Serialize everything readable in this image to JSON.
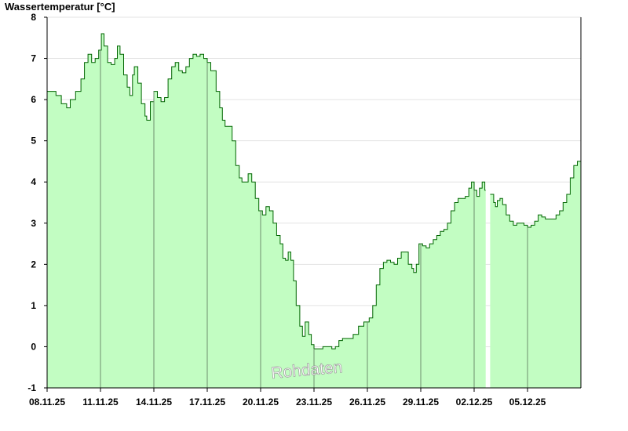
{
  "chart_data": {
    "type": "area",
    "ylabel": "Wassertemperatur [°C]",
    "watermark": "Rohdaten",
    "ylim": [
      -1,
      8
    ],
    "y_ticks": [
      "-1",
      "0",
      "1",
      "2",
      "3",
      "4",
      "5",
      "6",
      "7",
      "8"
    ],
    "x_start": "08.11.25",
    "x_end_day": 30.0,
    "x_ticks": [
      {
        "day": 0,
        "label": "08.11.25"
      },
      {
        "day": 3,
        "label": "11.11.25"
      },
      {
        "day": 6,
        "label": "14.11.25"
      },
      {
        "day": 9,
        "label": "17.11.25"
      },
      {
        "day": 12,
        "label": "20.11.25"
      },
      {
        "day": 15,
        "label": "23.11.25"
      },
      {
        "day": 18,
        "label": "26.11.25"
      },
      {
        "day": 21,
        "label": "29.11.25"
      },
      {
        "day": 24,
        "label": "02.12.25"
      },
      {
        "day": 27,
        "label": "05.12.25"
      }
    ],
    "grid": true,
    "data_gap": [
      24.65,
      24.85
    ],
    "colors": {
      "fill": "#c2fdc2",
      "line": "#006400",
      "grid": "#e3e3e3",
      "vgrid": "#6f8f6f"
    },
    "series": [
      {
        "points": [
          [
            0.0,
            6.2
          ],
          [
            0.3,
            6.2
          ],
          [
            0.5,
            6.1
          ],
          [
            0.8,
            5.9
          ],
          [
            1.1,
            5.8
          ],
          [
            1.3,
            6.0
          ],
          [
            1.6,
            6.2
          ],
          [
            1.9,
            6.5
          ],
          [
            2.1,
            6.9
          ],
          [
            2.3,
            7.1
          ],
          [
            2.5,
            6.9
          ],
          [
            2.7,
            7.0
          ],
          [
            2.9,
            7.2
          ],
          [
            3.05,
            7.6
          ],
          [
            3.2,
            7.3
          ],
          [
            3.4,
            6.9
          ],
          [
            3.6,
            6.85
          ],
          [
            3.8,
            7.0
          ],
          [
            3.95,
            7.3
          ],
          [
            4.1,
            7.1
          ],
          [
            4.3,
            6.6
          ],
          [
            4.5,
            6.3
          ],
          [
            4.65,
            6.1
          ],
          [
            4.8,
            6.6
          ],
          [
            4.9,
            6.8
          ],
          [
            5.1,
            6.4
          ],
          [
            5.3,
            5.9
          ],
          [
            5.5,
            5.6
          ],
          [
            5.6,
            5.5
          ],
          [
            5.8,
            5.95
          ],
          [
            6.0,
            6.2
          ],
          [
            6.2,
            6.05
          ],
          [
            6.4,
            5.95
          ],
          [
            6.6,
            6.05
          ],
          [
            6.8,
            6.5
          ],
          [
            7.0,
            6.8
          ],
          [
            7.2,
            6.9
          ],
          [
            7.4,
            6.7
          ],
          [
            7.6,
            6.65
          ],
          [
            7.8,
            6.8
          ],
          [
            8.0,
            7.0
          ],
          [
            8.2,
            7.1
          ],
          [
            8.4,
            7.05
          ],
          [
            8.6,
            7.1
          ],
          [
            8.8,
            7.0
          ],
          [
            9.0,
            6.9
          ],
          [
            9.2,
            6.7
          ],
          [
            9.5,
            6.2
          ],
          [
            9.7,
            5.8
          ],
          [
            9.85,
            5.5
          ],
          [
            10.0,
            5.35
          ],
          [
            10.2,
            5.35
          ],
          [
            10.4,
            5.0
          ],
          [
            10.6,
            4.4
          ],
          [
            10.8,
            4.1
          ],
          [
            10.95,
            4.0
          ],
          [
            11.1,
            4.0
          ],
          [
            11.3,
            4.2
          ],
          [
            11.5,
            4.0
          ],
          [
            11.7,
            3.6
          ],
          [
            11.9,
            3.3
          ],
          [
            12.1,
            3.2
          ],
          [
            12.3,
            3.4
          ],
          [
            12.5,
            3.3
          ],
          [
            12.7,
            3.0
          ],
          [
            12.9,
            2.7
          ],
          [
            13.1,
            2.5
          ],
          [
            13.25,
            2.15
          ],
          [
            13.4,
            2.1
          ],
          [
            13.55,
            2.3
          ],
          [
            13.7,
            2.1
          ],
          [
            13.85,
            1.6
          ],
          [
            14.0,
            1.0
          ],
          [
            14.2,
            0.5
          ],
          [
            14.35,
            0.25
          ],
          [
            14.5,
            0.6
          ],
          [
            14.7,
            0.3
          ],
          [
            14.85,
            0.05
          ],
          [
            15.0,
            -0.05
          ],
          [
            15.2,
            -0.05
          ],
          [
            15.5,
            0.0
          ],
          [
            15.8,
            0.0
          ],
          [
            16.0,
            -0.05
          ],
          [
            16.2,
            0.0
          ],
          [
            16.4,
            0.15
          ],
          [
            16.6,
            0.2
          ],
          [
            16.9,
            0.2
          ],
          [
            17.2,
            0.3
          ],
          [
            17.5,
            0.5
          ],
          [
            17.8,
            0.6
          ],
          [
            18.1,
            0.7
          ],
          [
            18.3,
            1.0
          ],
          [
            18.5,
            1.5
          ],
          [
            18.7,
            1.9
          ],
          [
            18.9,
            2.05
          ],
          [
            19.1,
            2.1
          ],
          [
            19.3,
            2.05
          ],
          [
            19.5,
            2.0
          ],
          [
            19.7,
            2.15
          ],
          [
            19.9,
            2.3
          ],
          [
            20.1,
            2.3
          ],
          [
            20.3,
            2.0
          ],
          [
            20.5,
            1.9
          ],
          [
            20.6,
            1.8
          ],
          [
            20.75,
            2.0
          ],
          [
            20.9,
            2.5
          ],
          [
            21.1,
            2.45
          ],
          [
            21.3,
            2.4
          ],
          [
            21.5,
            2.5
          ],
          [
            21.7,
            2.6
          ],
          [
            21.9,
            2.7
          ],
          [
            22.1,
            2.8
          ],
          [
            22.3,
            2.85
          ],
          [
            22.5,
            3.0
          ],
          [
            22.7,
            3.3
          ],
          [
            22.9,
            3.5
          ],
          [
            23.1,
            3.6
          ],
          [
            23.3,
            3.6
          ],
          [
            23.5,
            3.65
          ],
          [
            23.7,
            3.85
          ],
          [
            23.85,
            4.0
          ],
          [
            24.0,
            3.8
          ],
          [
            24.15,
            3.65
          ],
          [
            24.3,
            3.85
          ],
          [
            24.45,
            4.0
          ],
          [
            24.6,
            3.8
          ],
          [
            24.9,
            3.7
          ],
          [
            25.1,
            3.5
          ],
          [
            25.2,
            3.4
          ],
          [
            25.3,
            3.55
          ],
          [
            25.45,
            3.6
          ],
          [
            25.6,
            3.45
          ],
          [
            25.8,
            3.2
          ],
          [
            26.0,
            3.05
          ],
          [
            26.2,
            2.95
          ],
          [
            26.4,
            3.0
          ],
          [
            26.6,
            3.0
          ],
          [
            26.8,
            2.95
          ],
          [
            27.0,
            2.9
          ],
          [
            27.2,
            2.95
          ],
          [
            27.4,
            3.05
          ],
          [
            27.6,
            3.2
          ],
          [
            27.8,
            3.15
          ],
          [
            28.0,
            3.1
          ],
          [
            28.2,
            3.1
          ],
          [
            28.4,
            3.1
          ],
          [
            28.6,
            3.2
          ],
          [
            28.8,
            3.3
          ],
          [
            29.0,
            3.5
          ],
          [
            29.2,
            3.7
          ],
          [
            29.4,
            4.1
          ],
          [
            29.6,
            4.4
          ],
          [
            29.8,
            4.5
          ],
          [
            30.0,
            4.6
          ]
        ]
      }
    ]
  }
}
